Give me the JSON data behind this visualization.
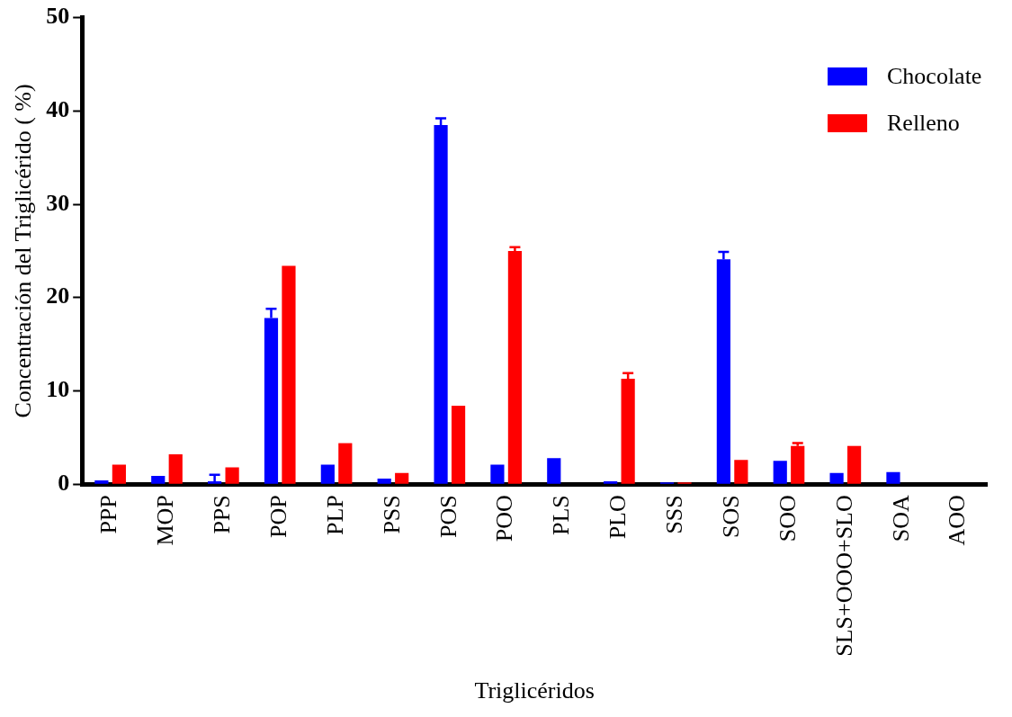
{
  "chart_data": {
    "type": "bar",
    "xlabel": "Triglicéridos",
    "ylabel": "Concentración del Triglicérido ( %)",
    "categories": [
      "PPP",
      "MOP",
      "PPS",
      "POP",
      "PLP",
      "PSS",
      "POS",
      "POO",
      "PLS",
      "PLO",
      "SSS",
      "SOS",
      "SOO",
      "SLS+OOO+SLO",
      "SOA",
      "AOO"
    ],
    "series": [
      {
        "name": "Chocolate",
        "color": "#0000ff",
        "values": [
          0.4,
          0.9,
          0.3,
          17.8,
          2.1,
          0.6,
          38.5,
          2.1,
          2.8,
          0.3,
          0.2,
          24.1,
          2.5,
          1.2,
          1.3,
          0
        ],
        "errors": [
          null,
          null,
          [
            0.3,
            1.0
          ],
          [
            17.8,
            18.8
          ],
          null,
          null,
          [
            38.5,
            39.2
          ],
          null,
          null,
          null,
          null,
          [
            24.1,
            24.9
          ],
          null,
          null,
          null,
          null
        ]
      },
      {
        "name": "Relleno",
        "color": "#ff0000",
        "values": [
          2.1,
          3.2,
          1.8,
          23.4,
          4.4,
          1.2,
          8.4,
          25.0,
          0,
          11.3,
          0.2,
          2.6,
          4.1,
          4.1,
          0,
          0
        ],
        "errors": [
          null,
          null,
          null,
          null,
          null,
          null,
          null,
          [
            25.0,
            25.4
          ],
          null,
          [
            11.3,
            11.9
          ],
          null,
          null,
          [
            4.1,
            4.4
          ],
          null,
          null,
          null
        ]
      }
    ],
    "ylim": [
      0,
      50
    ],
    "yticks": [
      0,
      10,
      20,
      30,
      40,
      50
    ],
    "legend": "top right"
  }
}
